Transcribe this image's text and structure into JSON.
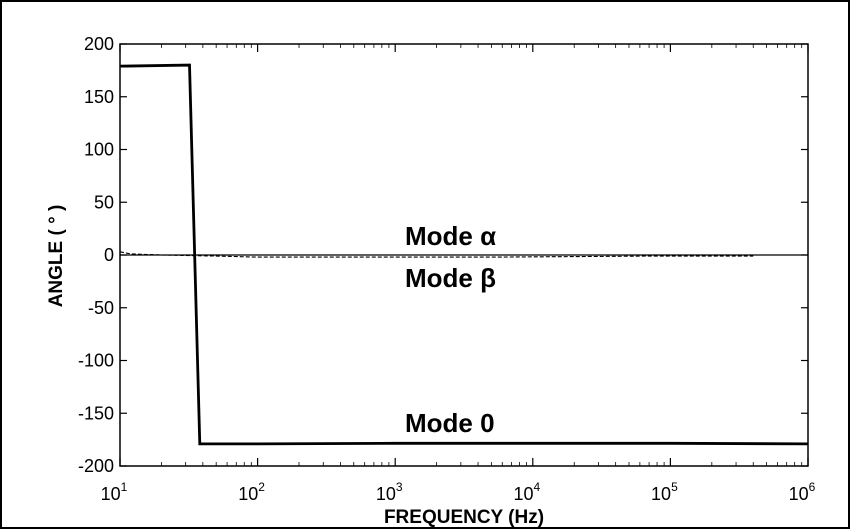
{
  "chart_data": {
    "type": "line",
    "xlabel": "FREQUENCY (Hz)",
    "ylabel": "ANGLE ( ° )",
    "xscale": "log",
    "xlim": [
      10,
      1000000
    ],
    "ylim": [
      -200,
      200
    ],
    "grid": false,
    "legend": "none",
    "y_ticks": [
      200,
      150,
      100,
      50,
      0,
      -50,
      -100,
      -150,
      -200
    ],
    "x_ticks": [
      {
        "base": "10",
        "exp": "1",
        "value": 10
      },
      {
        "base": "10",
        "exp": "2",
        "value": 100
      },
      {
        "base": "10",
        "exp": "3",
        "value": 1000
      },
      {
        "base": "10",
        "exp": "4",
        "value": 10000
      },
      {
        "base": "10",
        "exp": "5",
        "value": 100000
      },
      {
        "base": "10",
        "exp": "6",
        "value": 1000000
      }
    ],
    "annotations": [
      "Mode α",
      "Mode β",
      "Mode 0"
    ],
    "series": [
      {
        "line_style": "thick-solid",
        "color": "#000000",
        "x": [
          10,
          32,
          38,
          100,
          1000,
          10000,
          100000,
          1000000
        ],
        "y": [
          179,
          180,
          -179,
          -179,
          -178.5,
          -178.5,
          -178.5,
          -179
        ]
      },
      {
        "line_style": "thin-solid",
        "color": "#000000",
        "x": [
          10,
          100,
          1000,
          10000,
          100000,
          1000000
        ],
        "y": [
          0,
          0,
          0,
          0,
          0,
          0
        ]
      },
      {
        "line_style": "dashed",
        "color": "#000000",
        "x": [
          10,
          12,
          20,
          50,
          100,
          1000,
          5000,
          20000,
          70000,
          400000
        ],
        "y": [
          3,
          1,
          0,
          -1,
          -2,
          -2,
          -2,
          -1.5,
          -1,
          -1
        ]
      }
    ]
  }
}
